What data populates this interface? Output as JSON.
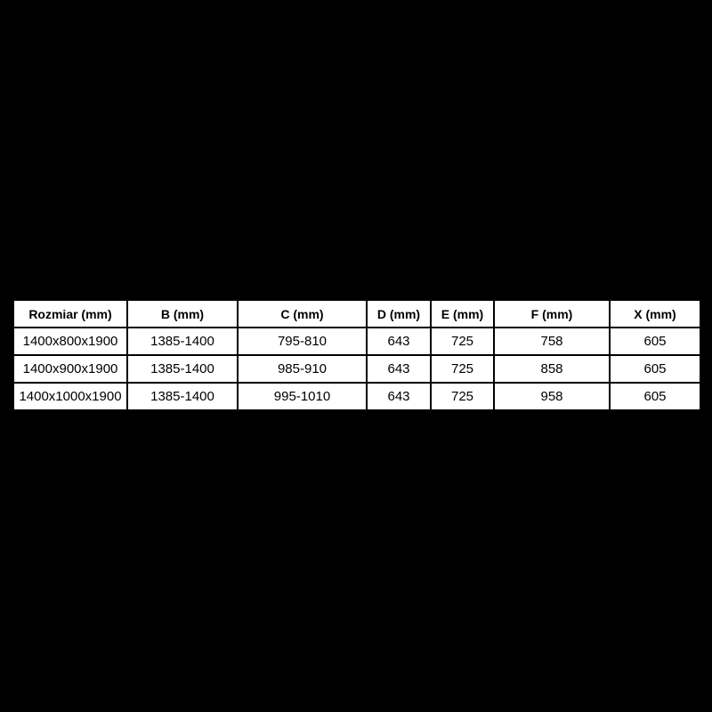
{
  "background_color": "#000000",
  "table": {
    "name": "shower-enclosure-dimensions",
    "grid_color": "#000000",
    "cell_background": "#ffffff",
    "text_color": "#000000",
    "columns": [
      "Rozmiar (mm)",
      "B (mm)",
      "C (mm)",
      "D (mm)",
      "E (mm)",
      "F (mm)",
      "X (mm)"
    ],
    "rows": [
      {
        "cells": [
          "1400x800x1900",
          "1385-1400",
          "795-810",
          "643",
          "725",
          "758",
          "605"
        ]
      },
      {
        "cells": [
          "1400x900x1900",
          "1385-1400",
          "985-910",
          "643",
          "725",
          "858",
          "605"
        ]
      },
      {
        "cells": [
          "1400x1000x1900",
          "1385-1400",
          "995-1010",
          "643",
          "725",
          "958",
          "605"
        ]
      }
    ]
  },
  "chart_data": {
    "type": "table",
    "title": "",
    "columns": [
      "Rozmiar (mm)",
      "B (mm)",
      "C (mm)",
      "D (mm)",
      "E (mm)",
      "F (mm)",
      "X (mm)"
    ],
    "rows": [
      [
        "1400x800x1900",
        "1385-1400",
        "795-810",
        "643",
        "725",
        "758",
        "605"
      ],
      [
        "1400x900x1900",
        "1385-1400",
        "985-910",
        "643",
        "725",
        "858",
        "605"
      ],
      [
        "1400x1000x1900",
        "1385-1400",
        "995-1010",
        "643",
        "725",
        "958",
        "605"
      ]
    ]
  }
}
